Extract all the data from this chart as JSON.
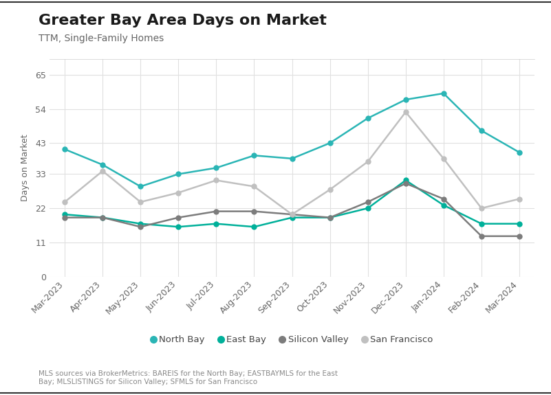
{
  "title": "Greater Bay Area Days on Market",
  "subtitle": "TTM, Single-Family Homes",
  "ylabel": "Days on Market",
  "footnote": "MLS sources via BrokerMetrics: BAREIS for the North Bay; EASTBAYMLS for the East\nBay; MLSLISTINGS for Silicon Valley; SFMLS for San Francisco",
  "x_labels": [
    "Mar-2023",
    "Apr-2023",
    "May-2023",
    "Jun-2023",
    "Jul-2023",
    "Aug-2023",
    "Sep-2023",
    "Oct-2023",
    "Nov-2023",
    "Dec-2023",
    "Jan-2024",
    "Feb-2024",
    "Mar-2024"
  ],
  "yticks": [
    0,
    11,
    22,
    33,
    43,
    54,
    65
  ],
  "ylim": [
    0,
    70
  ],
  "series": {
    "North Bay": {
      "color": "#2ab5b5",
      "values": [
        41,
        36,
        29,
        33,
        35,
        39,
        38,
        43,
        51,
        57,
        59,
        47,
        40
      ]
    },
    "East Bay": {
      "color": "#00b09a",
      "values": [
        20,
        19,
        17,
        16,
        17,
        16,
        19,
        19,
        22,
        31,
        23,
        17,
        17
      ]
    },
    "Silicon Valley": {
      "color": "#7c7c7c",
      "values": [
        19,
        19,
        16,
        19,
        21,
        21,
        20,
        19,
        24,
        30,
        25,
        13,
        13
      ]
    },
    "San Francisco": {
      "color": "#c0c0c0",
      "values": [
        24,
        34,
        24,
        27,
        31,
        29,
        20,
        28,
        37,
        53,
        38,
        22,
        25
      ]
    }
  },
  "legend_order": [
    "North Bay",
    "East Bay",
    "Silicon Valley",
    "San Francisco"
  ],
  "background_color": "#ffffff",
  "plot_bg_color": "#ffffff",
  "grid_color": "#e0e0e0",
  "border_color": "#cccccc",
  "title_fontsize": 16,
  "subtitle_fontsize": 10,
  "axis_fontsize": 9,
  "legend_fontsize": 9.5,
  "footnote_fontsize": 7.5,
  "tick_color": "#666666",
  "ylabel_color": "#666666"
}
